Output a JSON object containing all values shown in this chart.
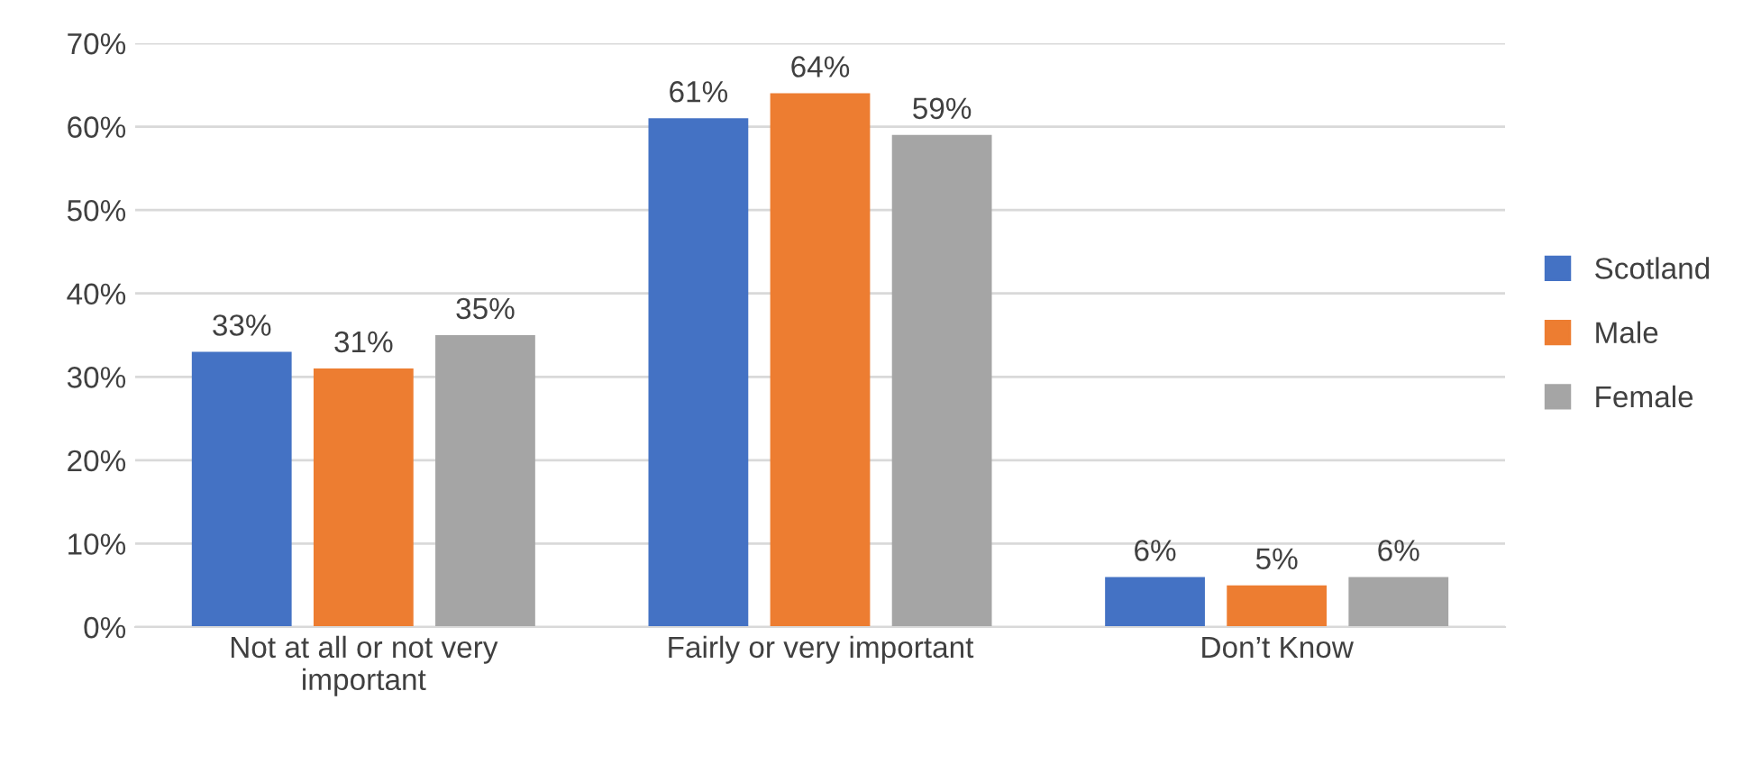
{
  "chart_data": {
    "type": "bar",
    "categories": [
      "Not at all or not very\nimportant",
      "Fairly or very important",
      "Don’t Know"
    ],
    "series": [
      {
        "name": "Scotland",
        "color": "#4472c4",
        "values": [
          33,
          61,
          6
        ],
        "value_labels": [
          "33%",
          "61%",
          "6%"
        ]
      },
      {
        "name": "Male",
        "color": "#ed7d31",
        "values": [
          31,
          64,
          5
        ],
        "value_labels": [
          "31%",
          "64%",
          "5%"
        ]
      },
      {
        "name": "Female",
        "color": "#a5a5a5",
        "values": [
          35,
          59,
          6
        ],
        "value_labels": [
          "35%",
          "59%",
          "6%"
        ]
      }
    ],
    "ylim": [
      0,
      70
    ],
    "yticks": [
      {
        "value": 0,
        "label": "0%"
      },
      {
        "value": 10,
        "label": "10%"
      },
      {
        "value": 20,
        "label": "20%"
      },
      {
        "value": 30,
        "label": "30%"
      },
      {
        "value": 40,
        "label": "40%"
      },
      {
        "value": 50,
        "label": "50%"
      },
      {
        "value": 60,
        "label": "60%"
      },
      {
        "value": 70,
        "label": "70%"
      }
    ],
    "grid": "y",
    "legend": "right"
  }
}
